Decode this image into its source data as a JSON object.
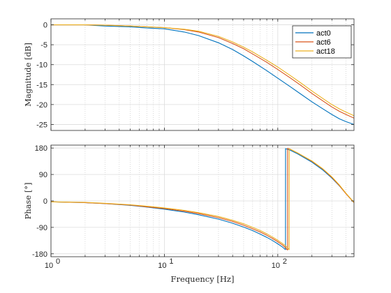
{
  "chart_data": [
    {
      "type": "line",
      "panel": "magnitude",
      "ylabel": "Magnitude [dB]",
      "xscale": "log",
      "xlim": [
        1,
        470
      ],
      "ylim": [
        -26.5,
        1.5
      ],
      "yticks": [
        0,
        -5,
        -10,
        -15,
        -20,
        -25
      ],
      "ytick_labels": [
        "0",
        "-5",
        "-10",
        "-15",
        "-20",
        "-25"
      ],
      "grid": true,
      "legend": {
        "placement": "top-right",
        "entries": [
          "act0",
          "act6",
          "act18"
        ]
      },
      "series": [
        {
          "name": "act0",
          "color": "#0072BD",
          "x": [
            1,
            1.5,
            2,
            3,
            5,
            7,
            10,
            15,
            20,
            30,
            40,
            50,
            60,
            80,
            100,
            130,
            160,
            200,
            250,
            300,
            350,
            400,
            470
          ],
          "y": [
            0,
            0,
            0,
            -0.3,
            -0.5,
            -0.8,
            -1.0,
            -1.8,
            -2.7,
            -4.5,
            -6.2,
            -7.8,
            -9.2,
            -11.5,
            -13.4,
            -15.6,
            -17.4,
            -19.3,
            -21.1,
            -22.5,
            -23.6,
            -24.3,
            -25.0
          ]
        },
        {
          "name": "act6",
          "color": "#D95319",
          "x": [
            1,
            1.5,
            2,
            3,
            5,
            7,
            10,
            15,
            20,
            30,
            40,
            50,
            60,
            80,
            100,
            130,
            160,
            200,
            250,
            300,
            350,
            400,
            470
          ],
          "y": [
            0,
            0,
            0,
            -0.1,
            -0.3,
            -0.5,
            -0.7,
            -1.2,
            -1.8,
            -3.2,
            -4.7,
            -6.0,
            -7.3,
            -9.4,
            -11.2,
            -13.4,
            -15.2,
            -17.2,
            -19.1,
            -20.6,
            -21.7,
            -22.5,
            -23.4
          ]
        },
        {
          "name": "act18",
          "color": "#EDB120",
          "x": [
            1,
            1.5,
            2,
            3,
            5,
            7,
            10,
            15,
            20,
            30,
            40,
            50,
            60,
            80,
            100,
            130,
            160,
            200,
            250,
            300,
            350,
            400,
            470
          ],
          "y": [
            0,
            0,
            0,
            -0.1,
            -0.3,
            -0.5,
            -0.7,
            -1.1,
            -1.6,
            -2.9,
            -4.3,
            -5.6,
            -6.8,
            -8.9,
            -10.6,
            -12.8,
            -14.6,
            -16.6,
            -18.5,
            -20.0,
            -21.1,
            -21.9,
            -22.8
          ]
        }
      ]
    },
    {
      "type": "line",
      "panel": "phase",
      "xlabel": "Frequency [Hz]",
      "ylabel": "Phase [°]",
      "xscale": "log",
      "xlim": [
        1,
        470
      ],
      "ylim": [
        -190,
        190
      ],
      "yticks": [
        180,
        90,
        0,
        -90,
        -180
      ],
      "ytick_labels": [
        "180",
        "90",
        "0",
        "-90",
        "-180"
      ],
      "xticks": [
        1,
        10,
        100
      ],
      "xtick_labels": [
        "10",
        "10",
        "10"
      ],
      "xtick_exponents": [
        "0",
        "1",
        "2"
      ],
      "grid": true,
      "series": [
        {
          "name": "act0",
          "color": "#0072BD",
          "x": [
            1,
            2,
            3,
            5,
            7,
            10,
            15,
            20,
            30,
            40,
            50,
            60,
            70,
            80,
            90,
            100,
            110,
            117,
            117.1,
            130,
            150,
            200,
            250,
            300,
            350,
            400,
            470
          ],
          "y": [
            -3,
            -6,
            -9,
            -15,
            -21,
            -28,
            -38,
            -47,
            -62,
            -76,
            -89,
            -101,
            -113,
            -124,
            -135,
            -146,
            -157,
            -166,
            178,
            172,
            160,
            132,
            105,
            78,
            51,
            25,
            -5
          ]
        },
        {
          "name": "act6",
          "color": "#D95319",
          "x": [
            1,
            2,
            3,
            5,
            7,
            10,
            15,
            20,
            30,
            40,
            50,
            60,
            70,
            80,
            90,
            100,
            110,
            119,
            120,
            122,
            122.1,
            130,
            150,
            200,
            250,
            300,
            350,
            400,
            470
          ],
          "y": [
            -3,
            -6,
            -9,
            -14,
            -20,
            -26,
            -35,
            -43,
            -57,
            -70,
            -83,
            -95,
            -106,
            -117,
            -128,
            -139,
            -150,
            -162,
            -165,
            -167,
            179,
            175,
            163,
            135,
            108,
            80,
            52,
            24,
            -6
          ]
        },
        {
          "name": "act18",
          "color": "#EDB120",
          "x": [
            1,
            2,
            3,
            5,
            7,
            10,
            15,
            20,
            30,
            40,
            50,
            60,
            70,
            80,
            90,
            100,
            110,
            120,
            126,
            126.1,
            135,
            150,
            200,
            250,
            300,
            350,
            400,
            470
          ],
          "y": [
            -3,
            -5,
            -8,
            -13,
            -18,
            -24,
            -32,
            -40,
            -53,
            -66,
            -78,
            -90,
            -101,
            -112,
            -123,
            -134,
            -145,
            -157,
            -166,
            178,
            172,
            163,
            136,
            109,
            82,
            54,
            26,
            -5
          ]
        }
      ]
    }
  ]
}
